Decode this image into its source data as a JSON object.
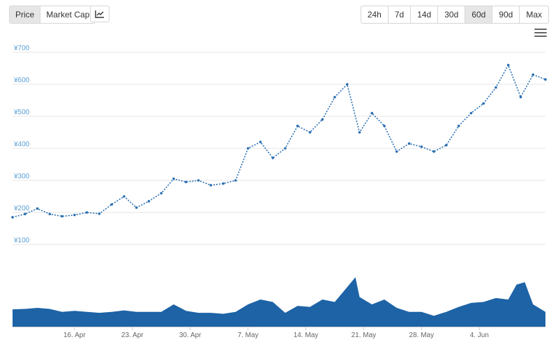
{
  "toolbar": {
    "metric_tabs": [
      "Price",
      "Market Cap"
    ],
    "active_metric": "Price",
    "chart_type_icon": "line-chart-icon",
    "ranges": [
      "24h",
      "7d",
      "14d",
      "30d",
      "60d",
      "90d",
      "Max"
    ],
    "active_range": "60d",
    "menu_icon": "hamburger-menu-icon"
  },
  "colors": {
    "price_line": "#2a6fb2",
    "volume_fill": "#1d63a6",
    "grid": "#e6e6e6",
    "axis_label": "#5a9fd4",
    "active_button": "#e6e6e6"
  },
  "chart_data": [
    {
      "type": "line",
      "title": "",
      "ylabel": "",
      "ylim": [
        100,
        700
      ],
      "y_ticks": [
        "¥700",
        "¥600",
        "¥500",
        "¥400",
        "¥300",
        "¥200",
        "¥100"
      ],
      "y_tick_values": [
        700,
        600,
        500,
        400,
        300,
        200,
        100
      ],
      "x_ticks": [
        "16. Apr",
        "23. Apr",
        "30. Apr",
        "7. May",
        "14. May",
        "21. May",
        "28. May",
        "4. Jun"
      ],
      "x_tick_days": [
        3,
        10,
        17,
        24,
        31,
        38,
        45,
        52
      ],
      "x_range_days": [
        -4.5,
        60
      ],
      "grid": true,
      "series": [
        {
          "x_days": [
            -4.5,
            -3,
            -1.5,
            0,
            1.5,
            3,
            4.5,
            6,
            7.5,
            9,
            10.5,
            12,
            13.5,
            15,
            16.5,
            18,
            19.5,
            21,
            22.5,
            24,
            25.5,
            27,
            28.5,
            30,
            31.5,
            33,
            34.5,
            36,
            37.5,
            39,
            40.5,
            42,
            43.5,
            45,
            46.5,
            48,
            49.5,
            51,
            52.5,
            54,
            55.5,
            57,
            58.5,
            60
          ],
          "values": [
            185,
            195,
            212,
            195,
            188,
            192,
            200,
            196,
            225,
            250,
            215,
            235,
            260,
            305,
            295,
            300,
            285,
            290,
            300,
            400,
            420,
            370,
            400,
            470,
            450,
            490,
            560,
            600,
            450,
            510,
            470,
            390,
            415,
            405,
            390,
            410,
            470,
            510,
            540,
            590,
            660,
            560,
            630,
            615
          ]
        }
      ]
    },
    {
      "type": "area",
      "title": "",
      "ylabel": "",
      "series": [
        {
          "x_days": [
            -4.5,
            -3,
            -1.5,
            0,
            1.5,
            3,
            4.5,
            6,
            7.5,
            9,
            10.5,
            12,
            13.5,
            15,
            16.5,
            18,
            19.5,
            21,
            22.5,
            24,
            25.5,
            27,
            28.5,
            30,
            31.5,
            33,
            34.5,
            36,
            37,
            37.5,
            38,
            39,
            40.5,
            42,
            43.5,
            45,
            46.5,
            48,
            49.5,
            51,
            52.5,
            54,
            55.5,
            56.5,
            57.5,
            58.5,
            60
          ],
          "values": [
            0.35,
            0.36,
            0.38,
            0.36,
            0.3,
            0.32,
            0.3,
            0.28,
            0.3,
            0.33,
            0.3,
            0.3,
            0.3,
            0.45,
            0.32,
            0.28,
            0.28,
            0.26,
            0.3,
            0.45,
            0.55,
            0.5,
            0.28,
            0.42,
            0.4,
            0.55,
            0.5,
            0.8,
            1.0,
            0.6,
            0.55,
            0.45,
            0.55,
            0.38,
            0.3,
            0.3,
            0.22,
            0.3,
            0.4,
            0.48,
            0.5,
            0.58,
            0.55,
            0.85,
            0.9,
            0.45,
            0.3
          ]
        }
      ]
    }
  ]
}
